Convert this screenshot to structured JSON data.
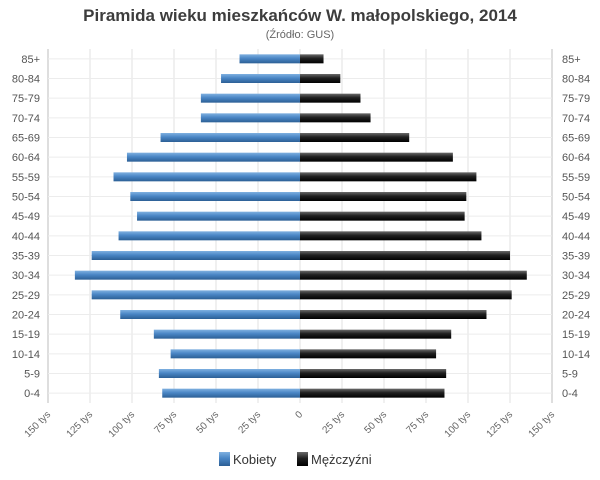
{
  "chart_data": {
    "type": "bar",
    "orientation": "horizontal",
    "title": "Piramida wieku mieszkańców W. małopolskiego, 2014",
    "subtitle": "(Źródło: GUS)",
    "categories": [
      "85+",
      "80-84",
      "75-79",
      "70-74",
      "65-69",
      "60-64",
      "55-59",
      "50-54",
      "45-49",
      "40-44",
      "35-39",
      "30-34",
      "25-29",
      "20-24",
      "15-19",
      "10-14",
      "5-9",
      "0-4"
    ],
    "series": [
      {
        "name": "Kobiety",
        "color": "#4a86c5",
        "values": [
          36,
          47,
          59,
          59,
          83,
          103,
          111,
          101,
          97,
          108,
          124,
          134,
          124,
          107,
          87,
          77,
          84,
          82
        ]
      },
      {
        "name": "Mężczyźni",
        "color": "#1f1f1f",
        "values": [
          14,
          24,
          36,
          42,
          65,
          91,
          105,
          99,
          98,
          108,
          125,
          135,
          126,
          111,
          90,
          81,
          87,
          86
        ]
      }
    ],
    "x_ticks": [
      "150 tys",
      "125 tys",
      "100 tys",
      "75 tys",
      "50 tys",
      "25 tys",
      "0",
      "25 tys",
      "50 tys",
      "75 tys",
      "100 tys",
      "125 tys",
      "150 tys"
    ],
    "xlim": [
      -150,
      150
    ],
    "units": "tys",
    "grid": true,
    "legend_position": "bottom"
  }
}
